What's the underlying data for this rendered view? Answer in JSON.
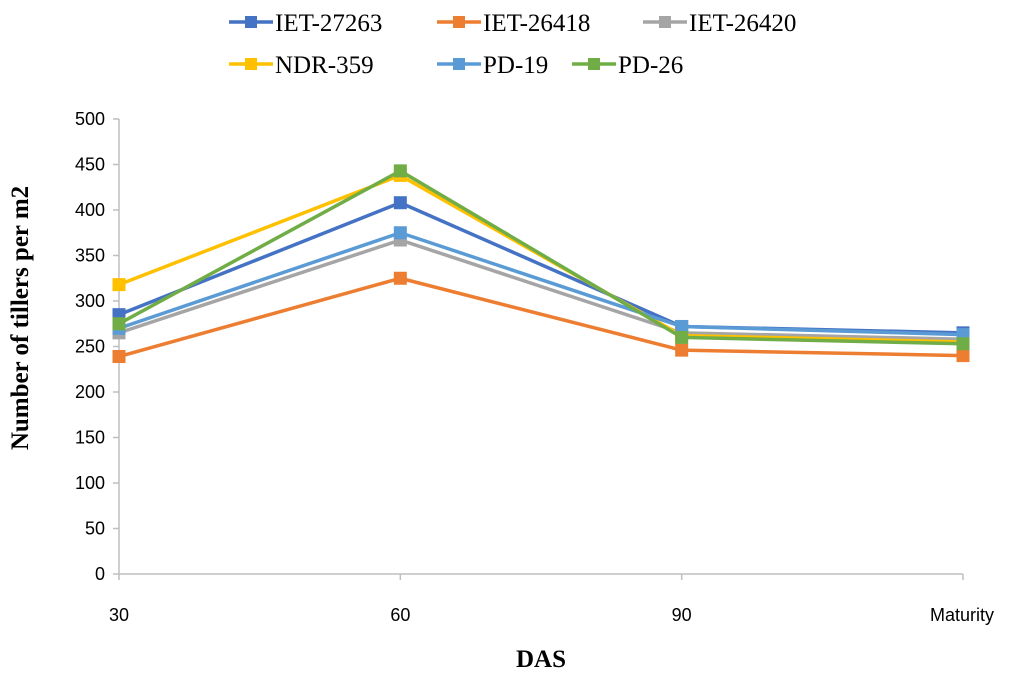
{
  "chart_data": {
    "type": "line",
    "title": "",
    "xlabel": "DAS",
    "ylabel": "Number of tillers per m2",
    "categories": [
      "30",
      "60",
      "90",
      "Maturity"
    ],
    "ylim": [
      0,
      500
    ],
    "yticks": [
      0,
      50,
      100,
      150,
      200,
      250,
      300,
      350,
      400,
      450,
      500
    ],
    "grid": false,
    "legend_position": "top",
    "series": [
      {
        "name": "IET-27263",
        "color": "#4472C4",
        "values": [
          285,
          408,
          272,
          265
        ]
      },
      {
        "name": "IET-26418",
        "color": "#ED7D31",
        "values": [
          239,
          325,
          246,
          240
        ]
      },
      {
        "name": "IET-26420",
        "color": "#A5A5A5",
        "values": [
          265,
          367,
          265,
          258
        ]
      },
      {
        "name": "NDR-359",
        "color": "#FFC000",
        "values": [
          318,
          438,
          262,
          255
        ]
      },
      {
        "name": "PD-19",
        "color": "#5B9BD5",
        "values": [
          270,
          375,
          272,
          263
        ]
      },
      {
        "name": "PD-26",
        "color": "#70AD47",
        "values": [
          275,
          443,
          260,
          253
        ]
      }
    ]
  }
}
